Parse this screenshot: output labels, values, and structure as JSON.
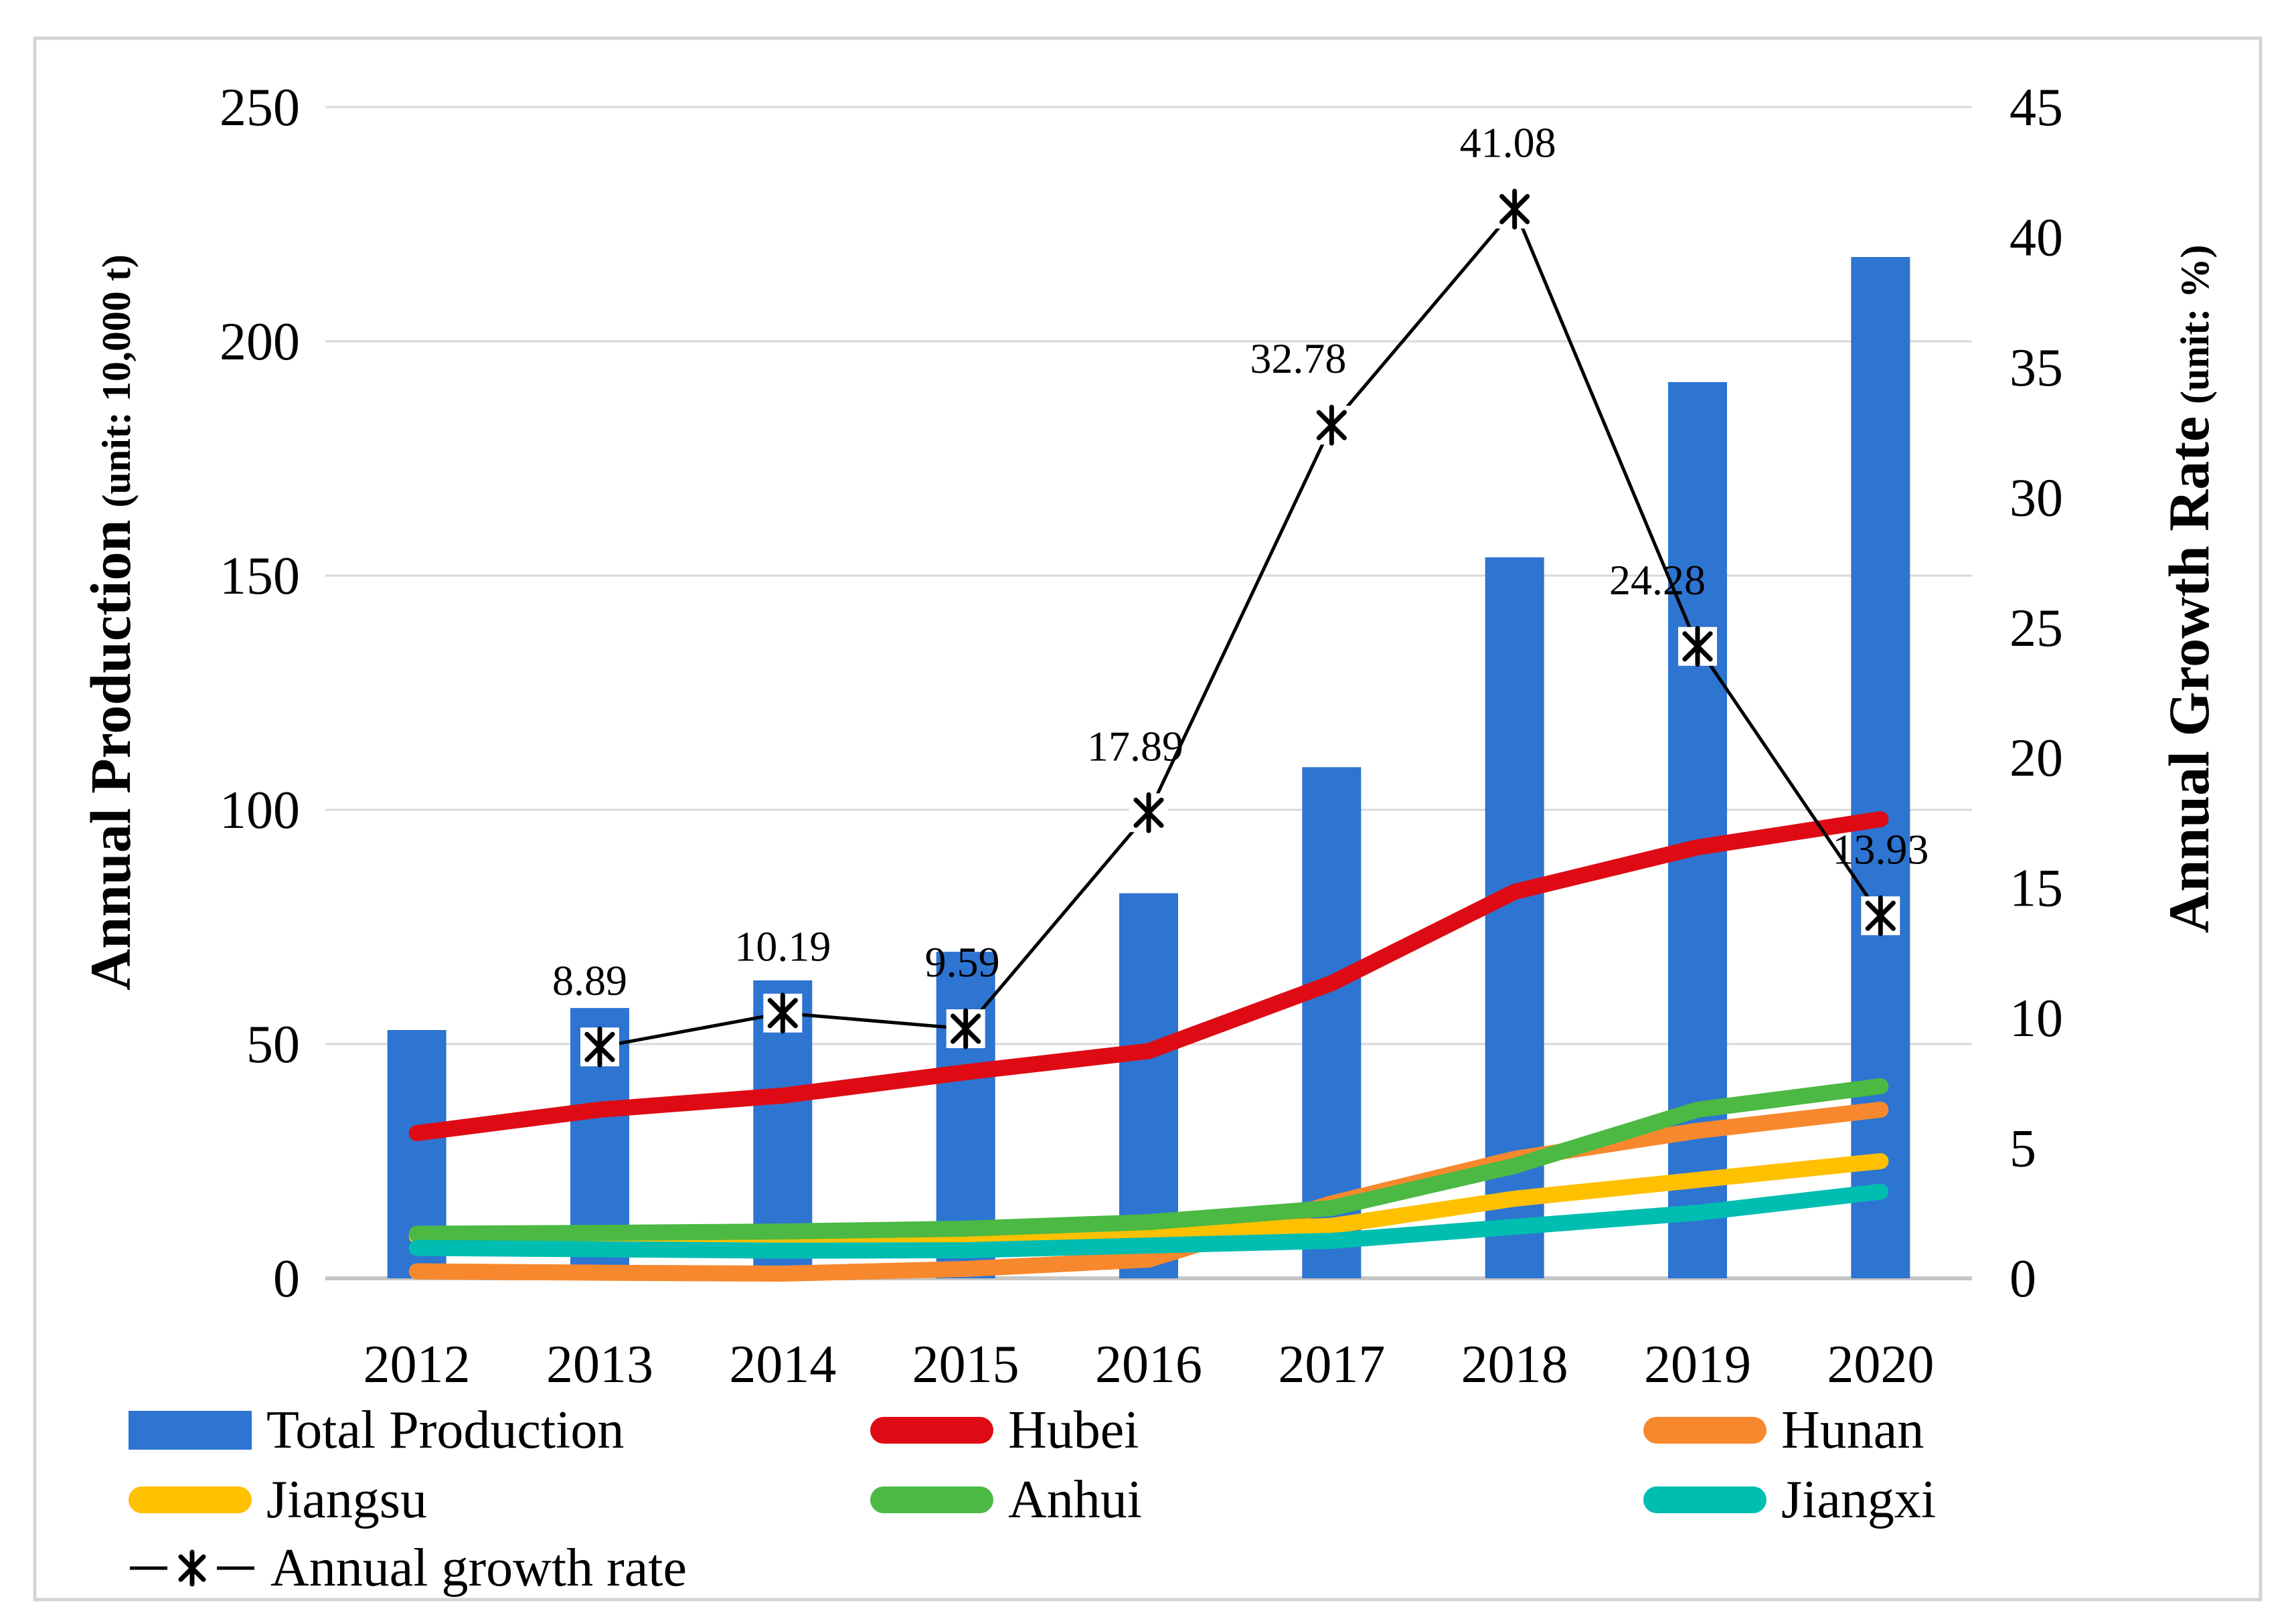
{
  "figure": {
    "left_axis_title": "Annual Production",
    "left_axis_unit": "(unit: 10,000 t)",
    "right_axis_title": "Annual Growth Rate",
    "right_axis_unit": "(unit: %)"
  },
  "chart_data": {
    "type": "combo-bar-line",
    "categories": [
      "2012",
      "2013",
      "2014",
      "2015",
      "2016",
      "2017",
      "2018",
      "2019",
      "2020"
    ],
    "bar_series": {
      "name": "Total Production",
      "axis": "left",
      "color": "#2E74D1",
      "values": [
        53,
        57.7,
        63.6,
        69.7,
        82.2,
        109.1,
        153.9,
        191.3,
        218
      ]
    },
    "line_series": [
      {
        "name": "Hubei",
        "axis": "left",
        "color": "#DE0B14",
        "values": [
          31,
          36,
          39,
          44,
          48.5,
          63,
          82.5,
          92,
          98
        ]
      },
      {
        "name": "Hunan",
        "axis": "left",
        "color": "#F8882D",
        "values": [
          1.5,
          1.2,
          1,
          2,
          4,
          16,
          25.5,
          31.5,
          36
        ]
      },
      {
        "name": "Jiangsu",
        "axis": "left",
        "color": "#FFC000",
        "values": [
          9,
          9,
          8.9,
          9.2,
          9.8,
          11.2,
          17,
          21,
          25
        ]
      },
      {
        "name": "Anhui",
        "axis": "left",
        "color": "#4BB943",
        "values": [
          9.5,
          9.7,
          10,
          10.6,
          12,
          15,
          24,
          36,
          41
        ]
      },
      {
        "name": "Jiangxi",
        "axis": "left",
        "color": "#00BDB2",
        "values": [
          6.5,
          6.2,
          5.9,
          6,
          7,
          8,
          11,
          14,
          18.5
        ]
      }
    ],
    "growth_series": {
      "name": "Annual growth rate",
      "axis": "right",
      "color": "#000000",
      "categories": [
        "2013",
        "2014",
        "2015",
        "2016",
        "2017",
        "2018",
        "2019",
        "2020"
      ],
      "values": [
        8.89,
        10.19,
        9.59,
        17.89,
        32.78,
        41.08,
        24.28,
        13.93
      ],
      "labels": [
        "8.89",
        "10.19",
        "9.59",
        "17.89",
        "32.78",
        "41.08",
        "24.28",
        "13.93"
      ]
    },
    "left_axis": {
      "min": 0,
      "max": 250,
      "step": 50,
      "ticks": [
        "0",
        "50",
        "100",
        "150",
        "200",
        "250"
      ]
    },
    "right_axis": {
      "min": 0,
      "max": 45,
      "step": 5,
      "ticks": [
        "0",
        "5",
        "10",
        "15",
        "20",
        "25",
        "30",
        "35",
        "40",
        "45"
      ]
    },
    "grid": true,
    "legend_position": "bottom"
  },
  "legend": {
    "items": [
      {
        "label": "Total Production",
        "swatch": "bar",
        "color": "#2E74D1"
      },
      {
        "label": "Hubei",
        "swatch": "line",
        "color": "#DE0B14"
      },
      {
        "label": "Hunan",
        "swatch": "line",
        "color": "#F8882D"
      },
      {
        "label": "Jiangsu",
        "swatch": "line",
        "color": "#FFC000"
      },
      {
        "label": "Anhui",
        "swatch": "line",
        "color": "#4BB943"
      },
      {
        "label": "Jiangxi",
        "swatch": "line",
        "color": "#00BDB2"
      },
      {
        "label": "Annual growth rate",
        "swatch": "growth-line",
        "color": "#000000"
      }
    ]
  }
}
